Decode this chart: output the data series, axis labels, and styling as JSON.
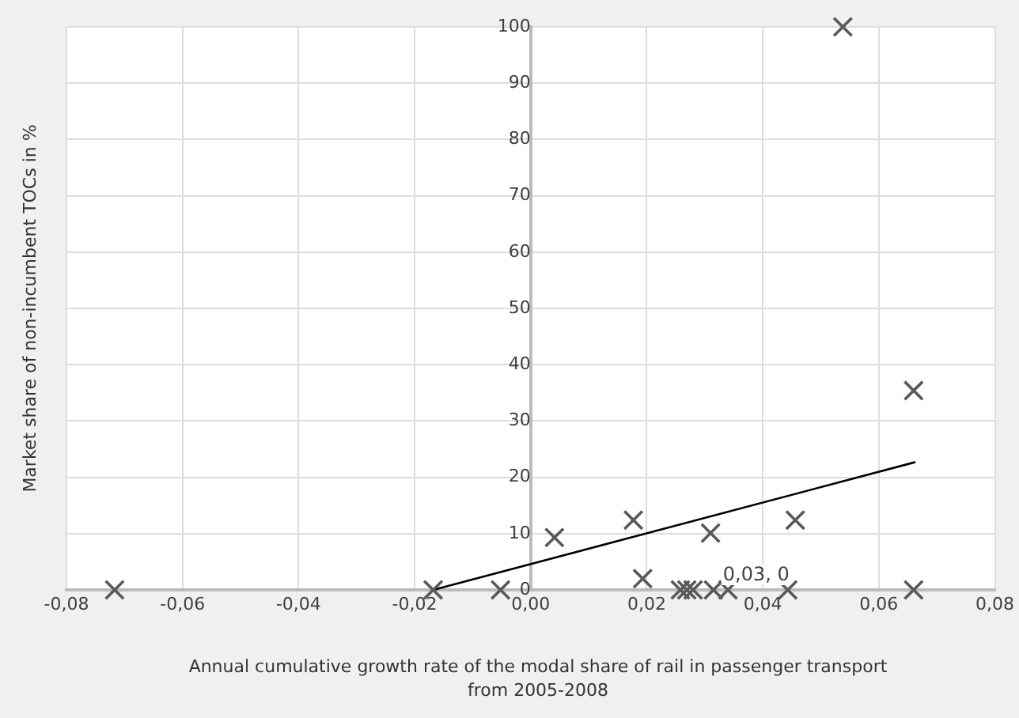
{
  "chart_data": {
    "type": "scatter",
    "xlabel": "Annual cumulative growth rate of the modal share of rail in passenger transport from 2005-2008",
    "ylabel": "Market share of non-incumbent TOCs in %",
    "series": [
      {
        "color": "#595959",
        "marker": "cross",
        "x": [
          -0.0717,
          -0.0168,
          -0.0052,
          0.0041,
          0.0177,
          0.0193,
          0.0258,
          0.0269,
          0.028,
          0.0315,
          0.034,
          0.031,
          0.0456,
          0.0443,
          0.066,
          0.066,
          0.0538
        ],
        "values": [
          0,
          0,
          0,
          9.3,
          12.4,
          2,
          0,
          0,
          0,
          0,
          0,
          10.1,
          12.4,
          0,
          35.4,
          0,
          100
        ]
      },
      {
        "type": "line",
        "color": "#000000",
        "marker": "none",
        "x": [
          -0.0168,
          0.0663
        ],
        "values": [
          0,
          22.7
        ]
      }
    ],
    "annotations": [
      {
        "text": "0,03, 0",
        "x": 0.0315,
        "y": 0
      }
    ],
    "xlim": [
      -0.08,
      0.08
    ],
    "xticks": [
      {
        "value": -0.08,
        "label": "-0,08"
      },
      {
        "value": -0.06,
        "label": "-0,06"
      },
      {
        "value": -0.04,
        "label": "-0,04"
      },
      {
        "value": -0.02,
        "label": "-0,02"
      },
      {
        "value": 0,
        "label": "0,00"
      },
      {
        "value": 0.02,
        "label": "0,02"
      },
      {
        "value": 0.04,
        "label": "0,04"
      },
      {
        "value": 0.06,
        "label": "0,06"
      },
      {
        "value": 0.08,
        "label": "0,08"
      }
    ],
    "ylim": [
      0,
      100
    ],
    "yticks": [
      0,
      10,
      20,
      30,
      40,
      50,
      60,
      70,
      80,
      90,
      100
    ],
    "grid": true,
    "legend": false
  }
}
